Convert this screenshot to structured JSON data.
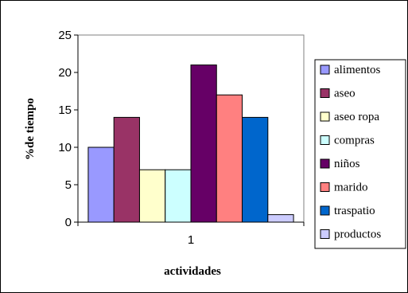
{
  "chart_data": {
    "type": "bar",
    "title": "",
    "categories": [
      "1"
    ],
    "series": [
      {
        "name": "alimentos",
        "values": [
          10
        ],
        "color": "#9999ff"
      },
      {
        "name": "aseo",
        "values": [
          14
        ],
        "color": "#993366"
      },
      {
        "name": "aseo ropa",
        "values": [
          7
        ],
        "color": "#ffffcc"
      },
      {
        "name": "compras",
        "values": [
          7
        ],
        "color": "#ccffff"
      },
      {
        "name": "niños",
        "values": [
          21
        ],
        "color": "#660066"
      },
      {
        "name": "marido",
        "values": [
          17
        ],
        "color": "#ff8080"
      },
      {
        "name": "traspatio",
        "values": [
          14
        ],
        "color": "#0066cc"
      },
      {
        "name": "productos",
        "values": [
          1
        ],
        "color": "#ccccff"
      }
    ],
    "xlabel": "actividades",
    "ylabel": "%de tiempo",
    "ylim": [
      0,
      25
    ],
    "yticks": [
      0,
      5,
      10,
      15,
      20,
      25
    ],
    "grid": false,
    "legend": "right",
    "plot_border_color": "#808080"
  }
}
